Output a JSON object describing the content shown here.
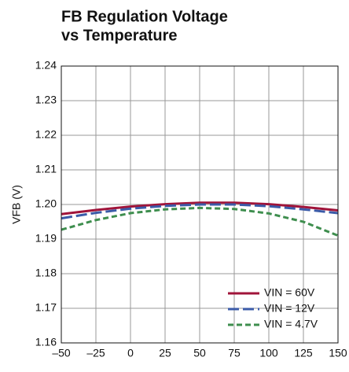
{
  "chart_data": {
    "type": "line",
    "title": [
      "FB Regulation Voltage",
      "vs Temperature"
    ],
    "ylabel": "VFB (V)",
    "x": [
      -50,
      -25,
      0,
      25,
      50,
      75,
      100,
      125,
      150
    ],
    "series": [
      {
        "name": "VIN = 60V",
        "color": "#a0143a",
        "dash": "none",
        "values": [
          1.1972,
          1.1984,
          1.1994,
          1.2001,
          1.2005,
          1.2005,
          1.2001,
          1.1993,
          1.1983
        ]
      },
      {
        "name": "VIN = 12V",
        "color": "#3b5ba8",
        "dash": "14 5",
        "values": [
          1.196,
          1.1976,
          1.1988,
          1.1996,
          1.2,
          1.2,
          1.1995,
          1.1986,
          1.1975
        ]
      },
      {
        "name": "VIN = 4.7V",
        "color": "#3e8e4e",
        "dash": "7 4",
        "values": [
          1.1927,
          1.1955,
          1.1975,
          1.1986,
          1.199,
          1.1987,
          1.1974,
          1.195,
          1.191
        ]
      }
    ],
    "xlim": [
      -50,
      150
    ],
    "xticks": [
      {
        "value": -50,
        "label": "–50"
      },
      {
        "value": -25,
        "label": "–25"
      },
      0,
      25,
      50,
      75,
      100,
      125,
      150
    ],
    "ylim": [
      1.16,
      1.24
    ],
    "yticks": [
      1.16,
      1.17,
      1.18,
      1.19,
      {
        "value": 1.2,
        "label": "1.20"
      },
      1.21,
      1.22,
      1.23,
      1.24
    ],
    "grid": true,
    "legend": "lower right"
  }
}
